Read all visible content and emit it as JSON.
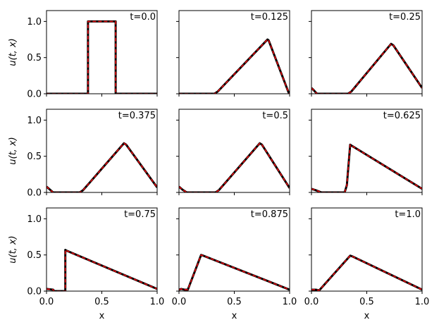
{
  "figure": {
    "ylabel": "u(t, x)",
    "xlabel": "x"
  },
  "colors": {
    "solution_line": "#000000",
    "prediction_line": "#e8000b",
    "frame": "#000000",
    "background": "#ffffff"
  },
  "chart_data": [
    {
      "type": "line",
      "title": "t=0.0",
      "x": [
        0.0,
        0.375,
        0.375,
        0.625,
        0.625,
        1.0
      ],
      "series": [
        {
          "values": [
            0.0,
            0.0,
            1.0,
            1.0,
            0.0,
            0.0
          ]
        },
        {
          "values": [
            0.0,
            0.0,
            1.0,
            1.0,
            0.0,
            0.0
          ]
        }
      ],
      "xlim": [
        0.0,
        1.0
      ],
      "ylim": [
        0.0,
        1.15
      ],
      "xticks": [
        0.0,
        0.5,
        1.0
      ],
      "yticks": [
        0.0,
        0.5,
        1.0
      ],
      "xticklabels": [
        "0.0",
        "0.5",
        "1.0"
      ],
      "yticklabels": [
        "0.0",
        "0.5",
        "1.0"
      ]
    },
    {
      "type": "line",
      "title": "t=0.125",
      "x": [
        0.0,
        0.32,
        0.35,
        0.8,
        0.81,
        0.99,
        1.0
      ],
      "series": [
        {
          "values": [
            0.0,
            0.0,
            0.03,
            0.75,
            0.74,
            0.02,
            0.0
          ]
        },
        {
          "values": [
            0.0,
            0.0,
            0.03,
            0.75,
            0.74,
            0.02,
            0.0
          ]
        }
      ],
      "xlim": [
        0.0,
        1.0
      ],
      "ylim": [
        0.0,
        1.15
      ],
      "xticks": [
        0.0,
        0.5,
        1.0
      ],
      "yticks": [
        0.0,
        0.5,
        1.0
      ],
      "xticklabels": [
        "0.0",
        "0.5",
        "1.0"
      ],
      "yticklabels": [
        "0.0",
        "0.5",
        "1.0"
      ]
    },
    {
      "type": "line",
      "title": "t=0.25",
      "x": [
        0.0,
        0.02,
        0.05,
        0.33,
        0.36,
        0.72,
        0.74,
        1.0
      ],
      "series": [
        {
          "values": [
            0.08,
            0.05,
            0.0,
            0.0,
            0.03,
            0.69,
            0.67,
            0.08
          ]
        },
        {
          "values": [
            0.08,
            0.05,
            0.0,
            0.0,
            0.03,
            0.69,
            0.67,
            0.08
          ]
        }
      ],
      "xlim": [
        0.0,
        1.0
      ],
      "ylim": [
        0.0,
        1.15
      ],
      "xticks": [
        0.0,
        0.5,
        1.0
      ],
      "yticks": [
        0.0,
        0.5,
        1.0
      ],
      "xticklabels": [
        "0.0",
        "0.5",
        "1.0"
      ],
      "yticklabels": [
        "0.0",
        "0.5",
        "1.0"
      ]
    },
    {
      "type": "line",
      "title": "t=0.375",
      "x": [
        0.0,
        0.03,
        0.06,
        0.3,
        0.33,
        0.7,
        0.72,
        1.0
      ],
      "series": [
        {
          "values": [
            0.08,
            0.04,
            0.0,
            0.0,
            0.03,
            0.68,
            0.66,
            0.07
          ]
        },
        {
          "values": [
            0.08,
            0.04,
            0.0,
            0.0,
            0.03,
            0.68,
            0.66,
            0.07
          ]
        }
      ],
      "xlim": [
        0.0,
        1.0
      ],
      "ylim": [
        0.0,
        1.15
      ],
      "xticks": [
        0.0,
        0.5,
        1.0
      ],
      "yticks": [
        0.0,
        0.5,
        1.0
      ],
      "xticklabels": [
        "0.0",
        "0.5",
        "1.0"
      ],
      "yticklabels": [
        "0.0",
        "0.5",
        "1.0"
      ]
    },
    {
      "type": "line",
      "title": "t=0.5",
      "x": [
        0.0,
        0.03,
        0.07,
        0.33,
        0.36,
        0.73,
        0.75,
        1.0
      ],
      "series": [
        {
          "values": [
            0.08,
            0.04,
            0.0,
            0.0,
            0.03,
            0.68,
            0.66,
            0.06
          ]
        },
        {
          "values": [
            0.08,
            0.04,
            0.0,
            0.0,
            0.03,
            0.68,
            0.66,
            0.06
          ]
        }
      ],
      "xlim": [
        0.0,
        1.0
      ],
      "ylim": [
        0.0,
        1.15
      ],
      "xticks": [
        0.0,
        0.5,
        1.0
      ],
      "yticks": [
        0.0,
        0.5,
        1.0
      ],
      "xticklabels": [
        "0.0",
        "0.5",
        "1.0"
      ],
      "yticklabels": [
        "0.0",
        "0.5",
        "1.0"
      ]
    },
    {
      "type": "line",
      "title": "t=0.625",
      "x": [
        0.0,
        0.04,
        0.09,
        0.3,
        0.32,
        0.35,
        0.37,
        1.0
      ],
      "series": [
        {
          "values": [
            0.05,
            0.03,
            0.0,
            0.0,
            0.1,
            0.66,
            0.64,
            0.05
          ]
        },
        {
          "values": [
            0.05,
            0.03,
            0.0,
            0.0,
            0.1,
            0.66,
            0.64,
            0.05
          ]
        }
      ],
      "xlim": [
        0.0,
        1.0
      ],
      "ylim": [
        0.0,
        1.15
      ],
      "xticks": [
        0.0,
        0.5,
        1.0
      ],
      "yticks": [
        0.0,
        0.5,
        1.0
      ],
      "xticklabels": [
        "0.0",
        "0.5",
        "1.0"
      ],
      "yticklabels": [
        "0.0",
        "0.5",
        "1.0"
      ]
    },
    {
      "type": "line",
      "title": "t=0.75",
      "x": [
        0.0,
        0.06,
        0.07,
        0.17,
        0.17,
        0.18,
        1.0
      ],
      "series": [
        {
          "values": [
            0.03,
            0.02,
            0.0,
            0.0,
            0.57,
            0.56,
            0.03
          ]
        },
        {
          "values": [
            0.03,
            0.02,
            0.0,
            0.0,
            0.57,
            0.56,
            0.03
          ]
        }
      ],
      "xlim": [
        0.0,
        1.0
      ],
      "ylim": [
        0.0,
        1.15
      ],
      "xticks": [
        0.0,
        0.5,
        1.0
      ],
      "yticks": [
        0.0,
        0.5,
        1.0
      ],
      "xticklabels": [
        "0.0",
        "0.5",
        "1.0"
      ],
      "yticklabels": [
        "0.0",
        "0.5",
        "1.0"
      ]
    },
    {
      "type": "line",
      "title": "t=0.875",
      "x": [
        0.0,
        0.02,
        0.05,
        0.08,
        0.2,
        0.22,
        1.0
      ],
      "series": [
        {
          "values": [
            0.02,
            0.03,
            0.02,
            0.02,
            0.5,
            0.49,
            0.02
          ]
        },
        {
          "values": [
            0.02,
            0.03,
            0.02,
            0.02,
            0.5,
            0.49,
            0.02
          ]
        }
      ],
      "xlim": [
        0.0,
        1.0
      ],
      "ylim": [
        0.0,
        1.15
      ],
      "xticks": [
        0.0,
        0.5,
        1.0
      ],
      "yticks": [
        0.0,
        0.5,
        1.0
      ],
      "xticklabels": [
        "0.0",
        "0.5",
        "1.0"
      ],
      "yticklabels": [
        "0.0",
        "0.5",
        "1.0"
      ]
    },
    {
      "type": "line",
      "title": "t=1.0",
      "x": [
        0.0,
        0.04,
        0.07,
        0.35,
        0.37,
        1.0
      ],
      "series": [
        {
          "values": [
            0.02,
            0.02,
            0.01,
            0.49,
            0.48,
            0.02
          ]
        },
        {
          "values": [
            0.02,
            0.02,
            0.01,
            0.49,
            0.48,
            0.02
          ]
        }
      ],
      "xlim": [
        0.0,
        1.0
      ],
      "ylim": [
        0.0,
        1.15
      ],
      "xticks": [
        0.0,
        0.5,
        1.0
      ],
      "yticks": [
        0.0,
        0.5,
        1.0
      ],
      "xticklabels": [
        "0.0",
        "0.5",
        "1.0"
      ],
      "yticklabels": [
        "0.0",
        "0.5",
        "1.0"
      ]
    }
  ]
}
